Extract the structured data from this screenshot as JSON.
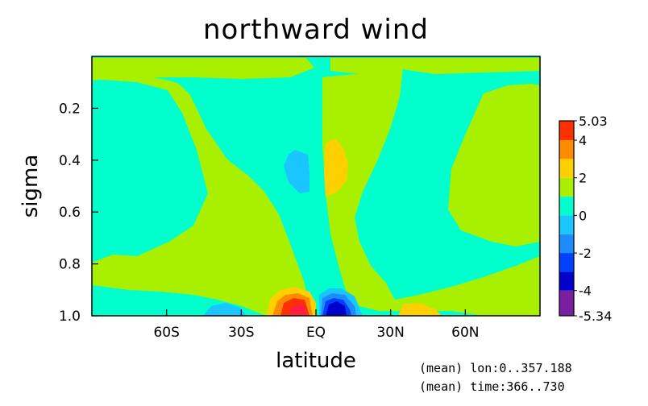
{
  "chart_data": {
    "type": "heatmap",
    "title": "northward wind",
    "xlabel": "latitude",
    "ylabel": "sigma",
    "x_tick_labels": [
      "60S",
      "30S",
      "EQ",
      "30N",
      "60N"
    ],
    "x_tick_values": [
      -60,
      -30,
      0,
      30,
      60
    ],
    "xlim": [
      -90,
      90
    ],
    "y_tick_labels": [
      "0.2",
      "0.4",
      "0.6",
      "0.8",
      "1.0"
    ],
    "y_tick_values": [
      0.2,
      0.4,
      0.6,
      0.8,
      1.0
    ],
    "ylim": [
      0.0,
      1.0
    ],
    "y_inverted": true,
    "colorbar": {
      "labels": [
        "5.03",
        "4",
        "2",
        "0",
        "-2",
        "-4",
        "-5.34"
      ],
      "max": 5.03,
      "min": -5.34,
      "levels": [
        -5.34,
        -4,
        -3,
        -2,
        -1,
        0,
        1,
        2,
        3,
        4,
        5.03
      ],
      "colors": [
        "#7a1fa0",
        "#0000cc",
        "#0040ff",
        "#1e8cff",
        "#19c6ff",
        "#00ffcc",
        "#a8f000",
        "#ffd000",
        "#ff8c00",
        "#ff3000",
        "#ff1e3c"
      ]
    },
    "annotations": [
      "(mean) lon:0..357.188",
      "(mean) time:366..730"
    ],
    "grid": false,
    "legend": "right"
  }
}
